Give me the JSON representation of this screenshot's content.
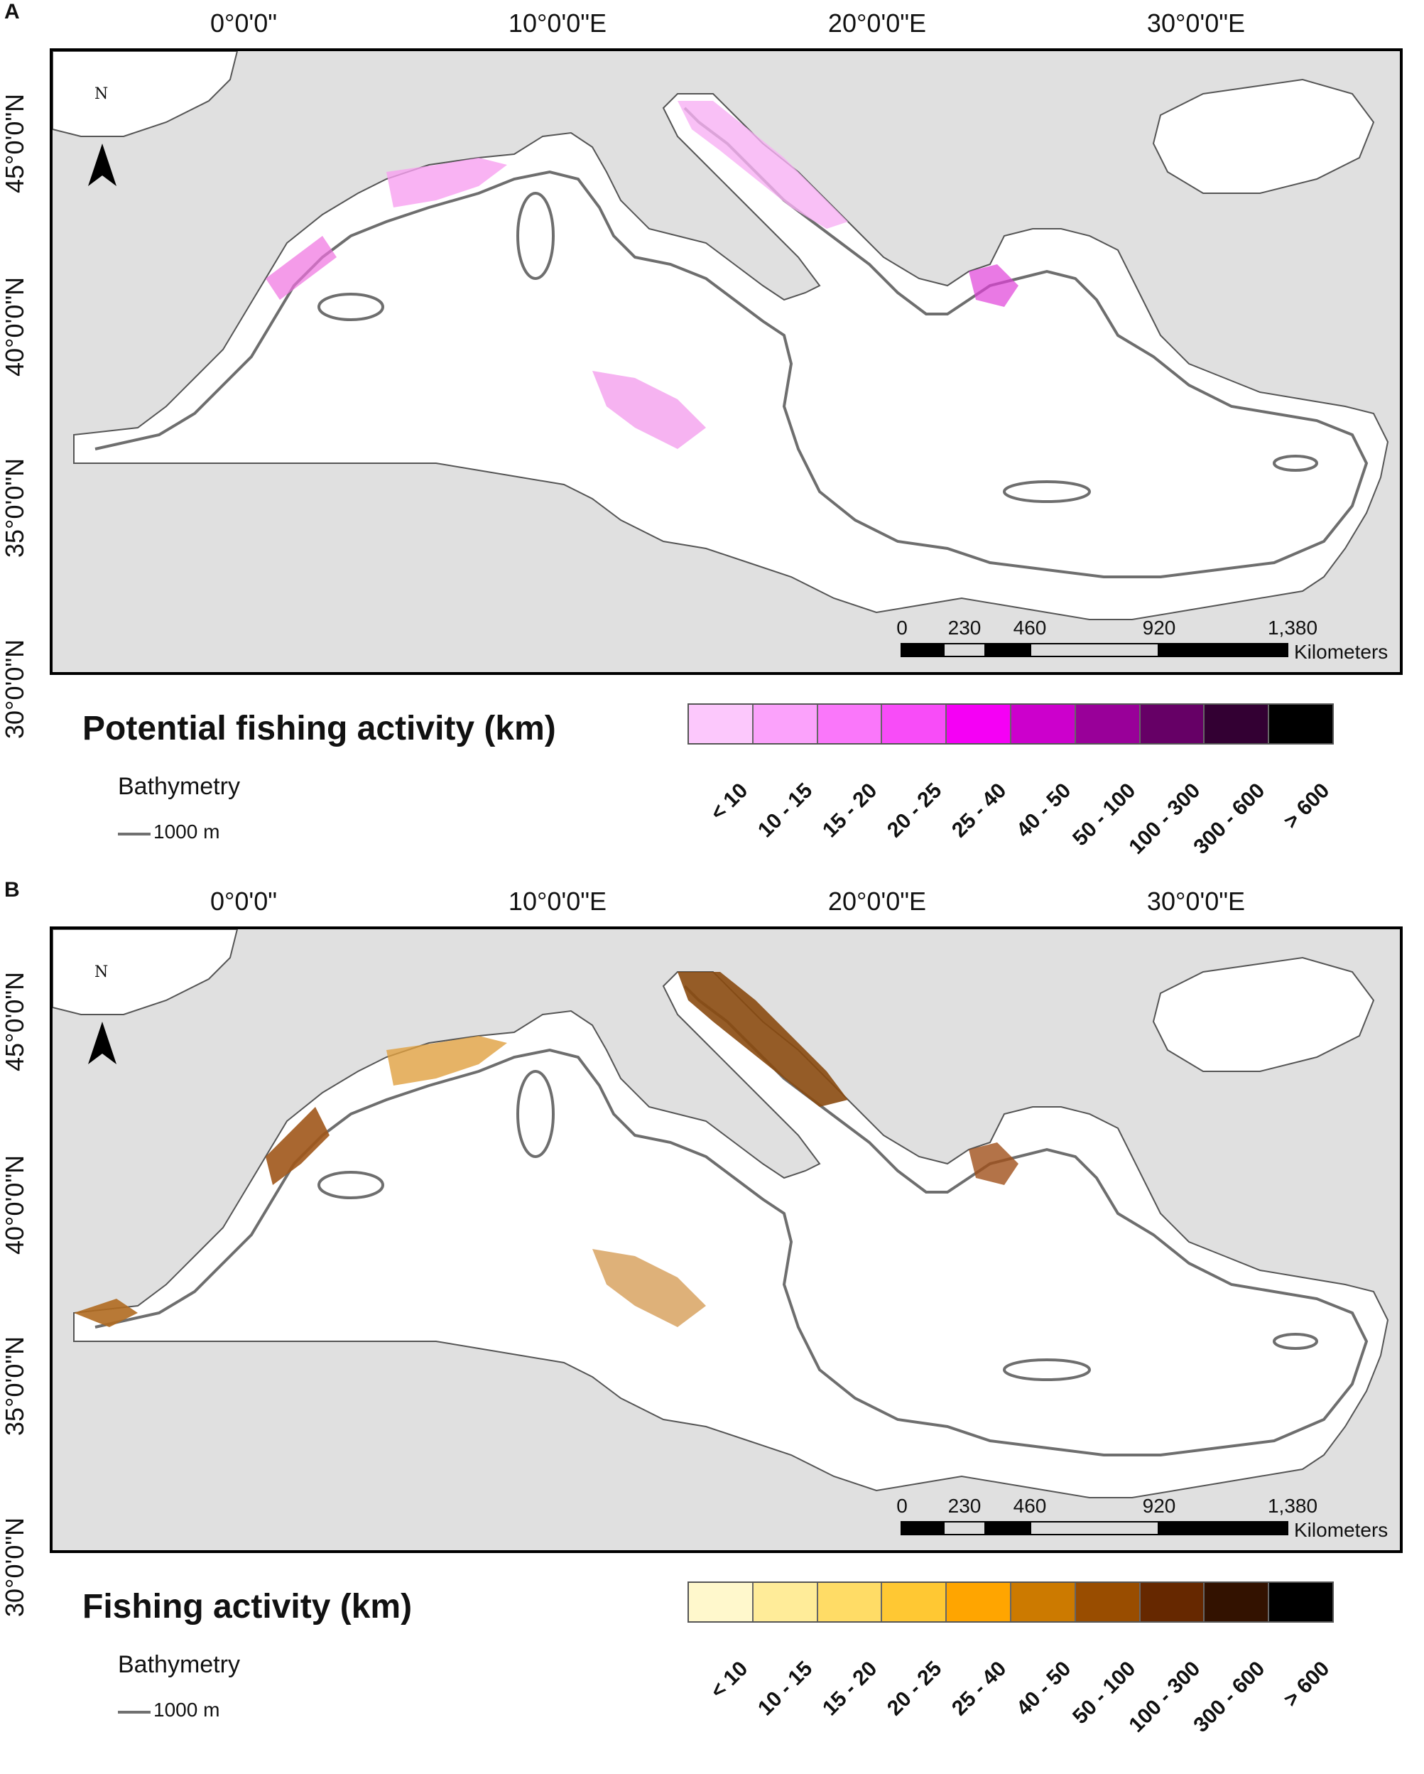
{
  "panels": [
    {
      "letter": "A",
      "lon_labels": [
        "0°0'0\"",
        "10°0'0\"E",
        "20°0'0\"E",
        "30°0'0\"E"
      ],
      "lat_labels": [
        "45°0'0\"N",
        "40°0'0\"N",
        "35°0'0\"N",
        "30°0'0\"N"
      ],
      "north_label": "N",
      "scale_ticks": [
        "0",
        "230",
        "460",
        "920",
        "1,380"
      ],
      "scale_unit": "Kilometers",
      "legend_title": "Potential fishing activity (km)",
      "bathymetry_title": "Bathymetry",
      "bathymetry_label": "1000 m",
      "categories": [
        "< 10",
        "10 - 15",
        "15 - 20",
        "20 - 25",
        "25 - 40",
        "40 - 50",
        "50 - 100",
        "100 - 300",
        "300 - 600",
        "> 600"
      ],
      "colors": [
        "#fcc8fc",
        "#fba2fb",
        "#fa77fa",
        "#f84cf8",
        "#f500f5",
        "#cc00cc",
        "#990099",
        "#660066",
        "#330033",
        "#000000"
      ]
    },
    {
      "letter": "B",
      "lon_labels": [
        "0°0'0\"",
        "10°0'0\"E",
        "20°0'0\"E",
        "30°0'0\"E"
      ],
      "lat_labels": [
        "45°0'0\"N",
        "40°0'0\"N",
        "35°0'0\"N",
        "30°0'0\"N"
      ],
      "north_label": "N",
      "scale_ticks": [
        "0",
        "230",
        "460",
        "920",
        "1,380"
      ],
      "scale_unit": "Kilometers",
      "legend_title": "Fishing activity (km)",
      "bathymetry_title": "Bathymetry",
      "bathymetry_label": "1000 m",
      "categories": [
        "< 10",
        "10 - 15",
        "15 - 20",
        "20 - 25",
        "25 - 40",
        "40 - 50",
        "50 - 100",
        "100 - 300",
        "300 - 600",
        "> 600"
      ],
      "colors": [
        "#fff8cc",
        "#ffec99",
        "#ffdc66",
        "#ffc833",
        "#ffa500",
        "#cc7a00",
        "#994d00",
        "#662800",
        "#331200",
        "#000000"
      ]
    }
  ]
}
